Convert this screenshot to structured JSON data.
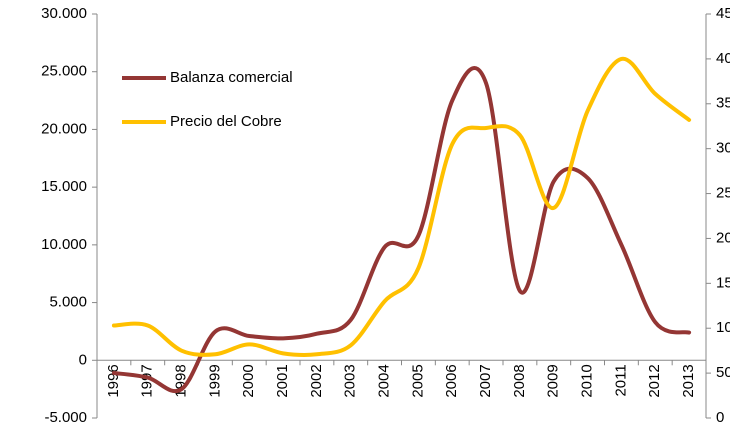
{
  "chart_data": {
    "type": "line",
    "categories": [
      "1996",
      "1997",
      "1998",
      "1999",
      "2000",
      "2001",
      "2002",
      "2003",
      "2004",
      "2005",
      "2006",
      "2007",
      "2008",
      "2009",
      "2010",
      "2011",
      "2012",
      "2013"
    ],
    "series": [
      {
        "name": "Balanza comercial",
        "color": "#943634",
        "values": [
          -1100,
          -1500,
          -2500,
          2500,
          2100,
          1900,
          2300,
          3500,
          9800,
          10800,
          22500,
          24000,
          6000,
          15500,
          15800,
          10000,
          3300,
          2400
        ]
      },
      {
        "name": "Precio del Cobre",
        "color": "#FFC000",
        "axis": "y2",
        "values": [
          103,
          103,
          75,
          71,
          82,
          72,
          71,
          81,
          130,
          167,
          305,
          323,
          315,
          234,
          342,
          400,
          361,
          332
        ]
      }
    ],
    "ylim": [
      -5000,
      30000
    ],
    "yticks": [
      {
        "value": -5000,
        "label": "-5.000"
      },
      0,
      {
        "value": 5000,
        "label": "5.000"
      },
      {
        "value": 10000,
        "label": "10.000"
      },
      {
        "value": 15000,
        "label": "15.000"
      },
      {
        "value": 20000,
        "label": "20.000"
      },
      {
        "value": 25000,
        "label": "25.000"
      },
      {
        "value": 30000,
        "label": "30.000"
      }
    ],
    "y2lim": [
      0,
      450
    ],
    "y2ticks": [
      0,
      50,
      100,
      150,
      200,
      250,
      300,
      350,
      400,
      450
    ],
    "legend": "upper left"
  }
}
